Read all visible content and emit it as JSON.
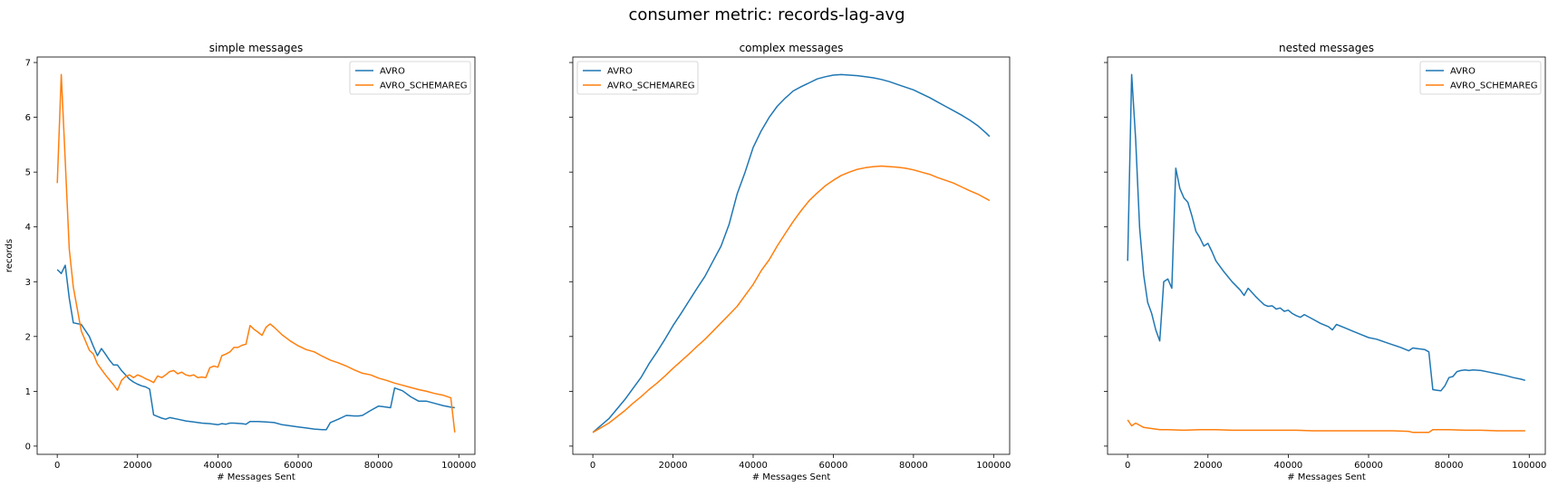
{
  "figure": {
    "title": "consumer metric: records-lag-avg"
  },
  "colors": {
    "AVRO": "#1f77b4",
    "AVRO_SCHEMAREG": "#ff7f0e",
    "axes": "#000000",
    "legend_border": "#cccccc"
  },
  "chart_data": [
    {
      "type": "line",
      "title": "simple messages",
      "xlabel": "# Messages Sent",
      "ylabel": "records",
      "xlim": [
        -5000,
        104000
      ],
      "ylim": [
        -0.15,
        7.1
      ],
      "xticks": [
        0,
        20000,
        40000,
        60000,
        80000,
        100000
      ],
      "yticks": [
        0,
        1,
        2,
        3,
        4,
        5,
        6,
        7
      ],
      "show_yticklabels": true,
      "grid": false,
      "legend": "top-right",
      "series": [
        {
          "name": "AVRO",
          "x": [
            0,
            1000,
            2000,
            3000,
            4000,
            6000,
            8000,
            9000,
            10000,
            11000,
            12000,
            13000,
            14000,
            15000,
            16000,
            17000,
            18000,
            19000,
            20000,
            21000,
            22000,
            23000,
            24000,
            25000,
            26000,
            27000,
            28000,
            30000,
            32000,
            34000,
            36000,
            38000,
            40000,
            41000,
            42000,
            43000,
            44000,
            46000,
            47000,
            48000,
            50000,
            52000,
            54000,
            56000,
            58000,
            60000,
            62000,
            64000,
            66000,
            67000,
            68000,
            70000,
            72000,
            74000,
            75000,
            76000,
            78000,
            80000,
            81000,
            82000,
            83000,
            84000,
            86000,
            88000,
            90000,
            92000,
            94000,
            96000,
            98000,
            99000
          ],
          "y": [
            3.22,
            3.15,
            3.3,
            2.7,
            2.25,
            2.22,
            2.0,
            1.82,
            1.65,
            1.78,
            1.68,
            1.57,
            1.48,
            1.48,
            1.38,
            1.3,
            1.22,
            1.17,
            1.13,
            1.1,
            1.08,
            1.04,
            0.57,
            0.54,
            0.51,
            0.49,
            0.52,
            0.49,
            0.46,
            0.44,
            0.42,
            0.41,
            0.39,
            0.41,
            0.4,
            0.42,
            0.42,
            0.41,
            0.4,
            0.45,
            0.45,
            0.44,
            0.43,
            0.39,
            0.37,
            0.35,
            0.33,
            0.31,
            0.3,
            0.3,
            0.43,
            0.49,
            0.56,
            0.55,
            0.55,
            0.56,
            0.65,
            0.73,
            0.72,
            0.71,
            0.7,
            1.06,
            1.01,
            0.9,
            0.82,
            0.82,
            0.78,
            0.74,
            0.71,
            0.7
          ]
        },
        {
          "name": "AVRO_SCHEMAREG",
          "x": [
            0,
            1000,
            2000,
            3000,
            4000,
            6000,
            8000,
            9000,
            10000,
            12000,
            14000,
            15000,
            16000,
            17000,
            18000,
            19000,
            20000,
            21000,
            22000,
            23000,
            24000,
            25000,
            26000,
            27000,
            28000,
            29000,
            30000,
            31000,
            32000,
            33000,
            34000,
            35000,
            36000,
            37000,
            38000,
            39000,
            40000,
            41000,
            42000,
            43000,
            44000,
            45000,
            46000,
            47000,
            48000,
            49000,
            50000,
            51000,
            52000,
            53000,
            54000,
            56000,
            58000,
            60000,
            62000,
            64000,
            66000,
            68000,
            70000,
            72000,
            74000,
            76000,
            78000,
            80000,
            82000,
            84000,
            86000,
            88000,
            90000,
            92000,
            94000,
            96000,
            98000,
            99000
          ],
          "y": [
            4.8,
            6.78,
            5.2,
            3.6,
            2.9,
            2.1,
            1.75,
            1.68,
            1.5,
            1.3,
            1.12,
            1.02,
            1.2,
            1.27,
            1.3,
            1.25,
            1.3,
            1.27,
            1.23,
            1.2,
            1.16,
            1.28,
            1.25,
            1.3,
            1.36,
            1.38,
            1.32,
            1.35,
            1.3,
            1.28,
            1.3,
            1.25,
            1.26,
            1.25,
            1.43,
            1.46,
            1.44,
            1.65,
            1.68,
            1.72,
            1.8,
            1.8,
            1.84,
            1.86,
            2.2,
            2.13,
            2.08,
            2.02,
            2.17,
            2.23,
            2.17,
            2.03,
            1.92,
            1.83,
            1.76,
            1.72,
            1.64,
            1.57,
            1.52,
            1.46,
            1.39,
            1.33,
            1.3,
            1.24,
            1.2,
            1.15,
            1.11,
            1.07,
            1.03,
            1.0,
            0.96,
            0.93,
            0.88,
            0.25
          ]
        }
      ]
    },
    {
      "type": "line",
      "title": "complex messages",
      "xlabel": "# Messages Sent",
      "ylabel": "",
      "xlim": [
        -5000,
        104000
      ],
      "ylim": [
        -0.15,
        7.1
      ],
      "xticks": [
        0,
        20000,
        40000,
        60000,
        80000,
        100000
      ],
      "yticks": [
        0,
        1,
        2,
        3,
        4,
        5,
        6,
        7
      ],
      "show_yticklabels": false,
      "grid": false,
      "legend": "top-left",
      "series": [
        {
          "name": "AVRO",
          "x": [
            0,
            4000,
            8000,
            10000,
            12000,
            14000,
            16000,
            18000,
            20000,
            22000,
            24000,
            26000,
            28000,
            30000,
            32000,
            34000,
            36000,
            38000,
            40000,
            42000,
            44000,
            46000,
            48000,
            50000,
            52000,
            54000,
            56000,
            58000,
            60000,
            62000,
            64000,
            66000,
            68000,
            70000,
            72000,
            74000,
            76000,
            78000,
            80000,
            82000,
            84000,
            86000,
            88000,
            90000,
            92000,
            94000,
            96000,
            98000,
            99000
          ],
          "y": [
            0.25,
            0.5,
            0.85,
            1.05,
            1.25,
            1.5,
            1.72,
            1.95,
            2.2,
            2.42,
            2.65,
            2.88,
            3.1,
            3.38,
            3.65,
            4.05,
            4.6,
            5.0,
            5.45,
            5.75,
            6.0,
            6.2,
            6.35,
            6.48,
            6.56,
            6.63,
            6.7,
            6.74,
            6.77,
            6.78,
            6.77,
            6.76,
            6.74,
            6.72,
            6.69,
            6.65,
            6.6,
            6.55,
            6.5,
            6.43,
            6.36,
            6.28,
            6.2,
            6.12,
            6.04,
            5.95,
            5.85,
            5.72,
            5.65
          ]
        },
        {
          "name": "AVRO_SCHEMAREG",
          "x": [
            0,
            4000,
            8000,
            10000,
            12000,
            14000,
            16000,
            18000,
            20000,
            22000,
            24000,
            26000,
            28000,
            30000,
            32000,
            34000,
            36000,
            38000,
            40000,
            42000,
            44000,
            46000,
            48000,
            50000,
            52000,
            54000,
            56000,
            58000,
            60000,
            62000,
            64000,
            66000,
            68000,
            70000,
            72000,
            74000,
            76000,
            78000,
            80000,
            82000,
            84000,
            86000,
            88000,
            90000,
            92000,
            94000,
            96000,
            98000,
            99000
          ],
          "y": [
            0.25,
            0.42,
            0.65,
            0.78,
            0.9,
            1.03,
            1.15,
            1.28,
            1.42,
            1.55,
            1.68,
            1.82,
            1.95,
            2.1,
            2.25,
            2.4,
            2.55,
            2.75,
            2.95,
            3.2,
            3.4,
            3.65,
            3.88,
            4.1,
            4.3,
            4.48,
            4.62,
            4.75,
            4.85,
            4.94,
            5.0,
            5.05,
            5.08,
            5.1,
            5.11,
            5.1,
            5.09,
            5.07,
            5.04,
            5.0,
            4.96,
            4.9,
            4.85,
            4.8,
            4.73,
            4.66,
            4.6,
            4.52,
            4.48
          ]
        }
      ]
    },
    {
      "type": "line",
      "title": "nested messages",
      "xlabel": "# Messages Sent",
      "ylabel": "",
      "xlim": [
        -5000,
        104000
      ],
      "ylim": [
        -0.15,
        7.1
      ],
      "xticks": [
        0,
        20000,
        40000,
        60000,
        80000,
        100000
      ],
      "yticks": [
        0,
        1,
        2,
        3,
        4,
        5,
        6,
        7
      ],
      "show_yticklabels": false,
      "grid": false,
      "legend": "top-right",
      "series": [
        {
          "name": "AVRO",
          "x": [
            0,
            1000,
            2000,
            3000,
            4000,
            5000,
            6000,
            7000,
            8000,
            9000,
            10000,
            11000,
            12000,
            13000,
            14000,
            15000,
            16000,
            17000,
            18000,
            19000,
            20000,
            21000,
            22000,
            24000,
            26000,
            28000,
            29000,
            30000,
            32000,
            33000,
            34000,
            35000,
            36000,
            37000,
            38000,
            39000,
            40000,
            41000,
            42000,
            43000,
            44000,
            46000,
            48000,
            50000,
            51000,
            52000,
            54000,
            56000,
            58000,
            60000,
            62000,
            64000,
            66000,
            68000,
            70000,
            71000,
            72000,
            74000,
            75000,
            76000,
            77000,
            78000,
            79000,
            80000,
            81000,
            82000,
            83000,
            84000,
            85000,
            86000,
            88000,
            90000,
            92000,
            94000,
            96000,
            98000,
            99000
          ],
          "y": [
            3.38,
            6.78,
            5.6,
            3.98,
            3.12,
            2.62,
            2.42,
            2.12,
            1.92,
            3.0,
            3.05,
            2.88,
            5.07,
            4.7,
            4.53,
            4.45,
            4.2,
            3.92,
            3.8,
            3.65,
            3.7,
            3.55,
            3.38,
            3.18,
            3.0,
            2.85,
            2.75,
            2.88,
            2.72,
            2.65,
            2.58,
            2.55,
            2.56,
            2.5,
            2.52,
            2.46,
            2.48,
            2.42,
            2.38,
            2.35,
            2.4,
            2.32,
            2.24,
            2.18,
            2.12,
            2.22,
            2.16,
            2.1,
            2.04,
            1.98,
            1.95,
            1.9,
            1.85,
            1.8,
            1.74,
            1.79,
            1.78,
            1.76,
            1.72,
            1.03,
            1.02,
            1.01,
            1.1,
            1.25,
            1.27,
            1.36,
            1.38,
            1.39,
            1.38,
            1.39,
            1.38,
            1.35,
            1.32,
            1.29,
            1.25,
            1.22,
            1.2
          ]
        },
        {
          "name": "AVRO_SCHEMAREG",
          "x": [
            0,
            1000,
            2000,
            3000,
            4000,
            6000,
            8000,
            10000,
            14000,
            18000,
            22000,
            26000,
            30000,
            34000,
            38000,
            42000,
            46000,
            50000,
            54000,
            58000,
            62000,
            66000,
            70000,
            71000,
            72000,
            75000,
            76000,
            77000,
            80000,
            84000,
            88000,
            92000,
            96000,
            99000
          ],
          "y": [
            0.48,
            0.37,
            0.42,
            0.38,
            0.34,
            0.32,
            0.3,
            0.3,
            0.29,
            0.3,
            0.3,
            0.29,
            0.29,
            0.29,
            0.29,
            0.29,
            0.28,
            0.28,
            0.28,
            0.28,
            0.28,
            0.28,
            0.27,
            0.25,
            0.25,
            0.25,
            0.3,
            0.3,
            0.3,
            0.29,
            0.29,
            0.28,
            0.28,
            0.28
          ]
        }
      ]
    }
  ]
}
